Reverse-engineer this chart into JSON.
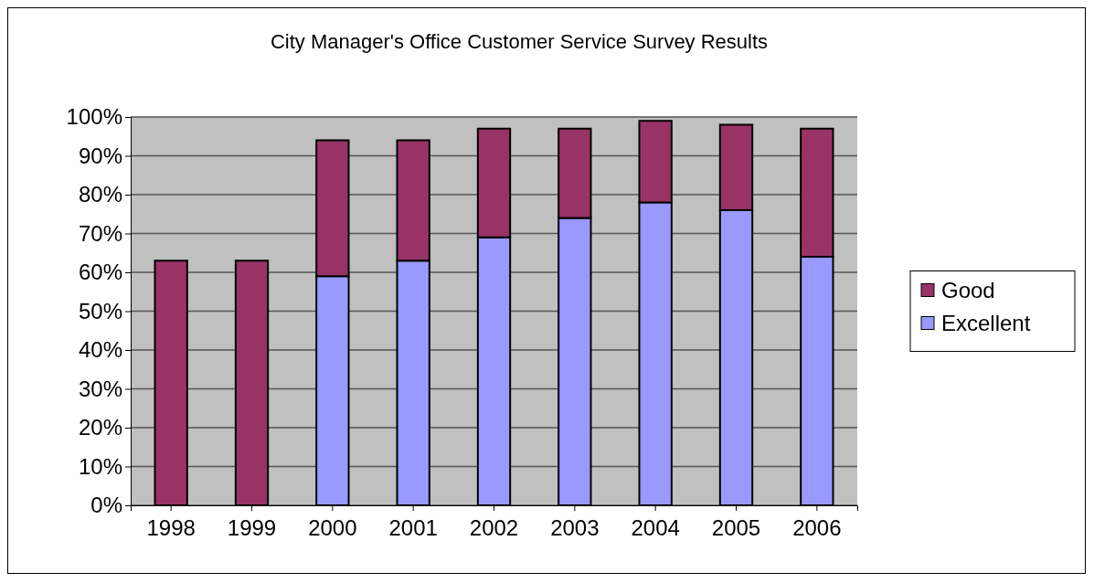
{
  "chart_data": {
    "type": "bar",
    "title": "City Manager's Office Customer Service Survey Results",
    "categories": [
      "1998",
      "1999",
      "2000",
      "2001",
      "2002",
      "2003",
      "2004",
      "2005",
      "2006"
    ],
    "stacked": true,
    "series": [
      {
        "name": "Excellent",
        "color": "#9999ff",
        "values": [
          null,
          null,
          59,
          63,
          69,
          74,
          78,
          76,
          64
        ]
      },
      {
        "name": "Good",
        "color": "#993366",
        "values": [
          63,
          63,
          35,
          31,
          28,
          23,
          21,
          22,
          33
        ]
      }
    ],
    "ylim": [
      0,
      100
    ],
    "yticks": [
      {
        "value": 0,
        "label": "0%"
      },
      {
        "value": 10,
        "label": "10%"
      },
      {
        "value": 20,
        "label": "20%"
      },
      {
        "value": 30,
        "label": "30%"
      },
      {
        "value": 40,
        "label": "40%"
      },
      {
        "value": 50,
        "label": "50%"
      },
      {
        "value": 60,
        "label": "60%"
      },
      {
        "value": 70,
        "label": "70%"
      },
      {
        "value": 80,
        "label": "80%"
      },
      {
        "value": 90,
        "label": "90%"
      },
      {
        "value": 100,
        "label": "100%"
      }
    ],
    "grid": "y",
    "legend": "right"
  }
}
